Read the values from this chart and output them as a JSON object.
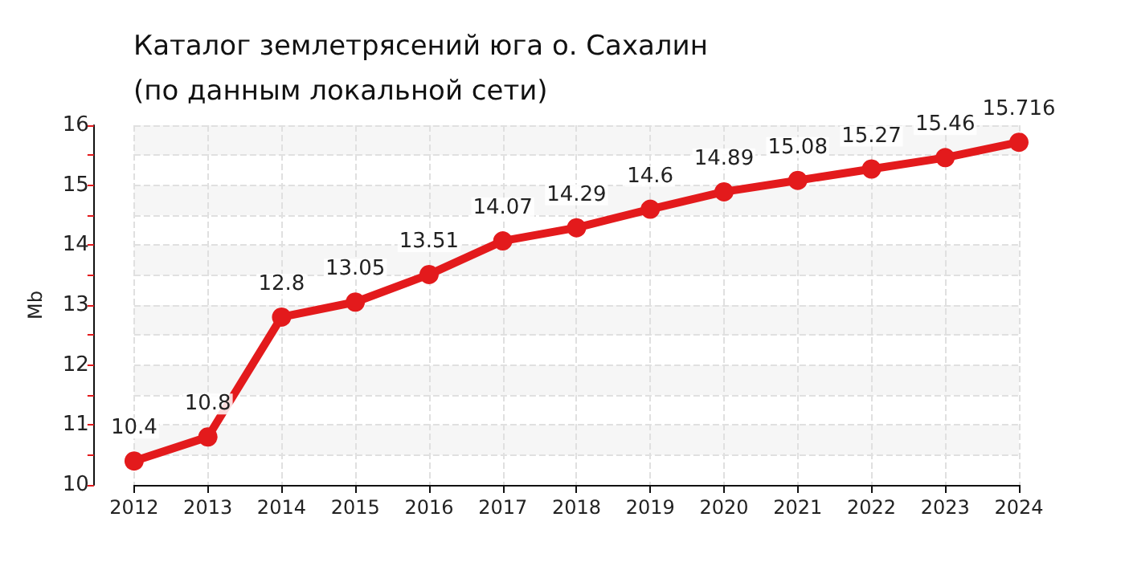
{
  "chart_data": {
    "type": "line",
    "title": "Каталог землетрясений юга о. Сахалин (по данным локальной сети)",
    "ylabel": "Mb",
    "categories": [
      "2012",
      "2013",
      "2014",
      "2015",
      "2016",
      "2017",
      "2018",
      "2019",
      "2020",
      "2021",
      "2022",
      "2023",
      "2024"
    ],
    "series": [
      {
        "color": "#e31a1c",
        "values": [
          10.4,
          10.8,
          12.8,
          13.05,
          13.51,
          14.07,
          14.29,
          14.6,
          14.89,
          15.08,
          15.27,
          15.46,
          15.716
        ]
      }
    ],
    "ylim": [
      10,
      16
    ],
    "yticks": [
      10,
      {
        "value": 10.5,
        "label": null
      },
      11,
      {
        "value": 11.5,
        "label": null
      },
      12,
      {
        "value": 12.5,
        "label": null
      },
      13,
      {
        "value": 13.5,
        "label": null
      },
      14,
      {
        "value": 14.5,
        "label": null
      },
      15,
      {
        "value": 15.5,
        "label": null
      },
      16
    ],
    "grid": true,
    "data_labels": true,
    "marker": "circle",
    "line_style": "solid"
  }
}
